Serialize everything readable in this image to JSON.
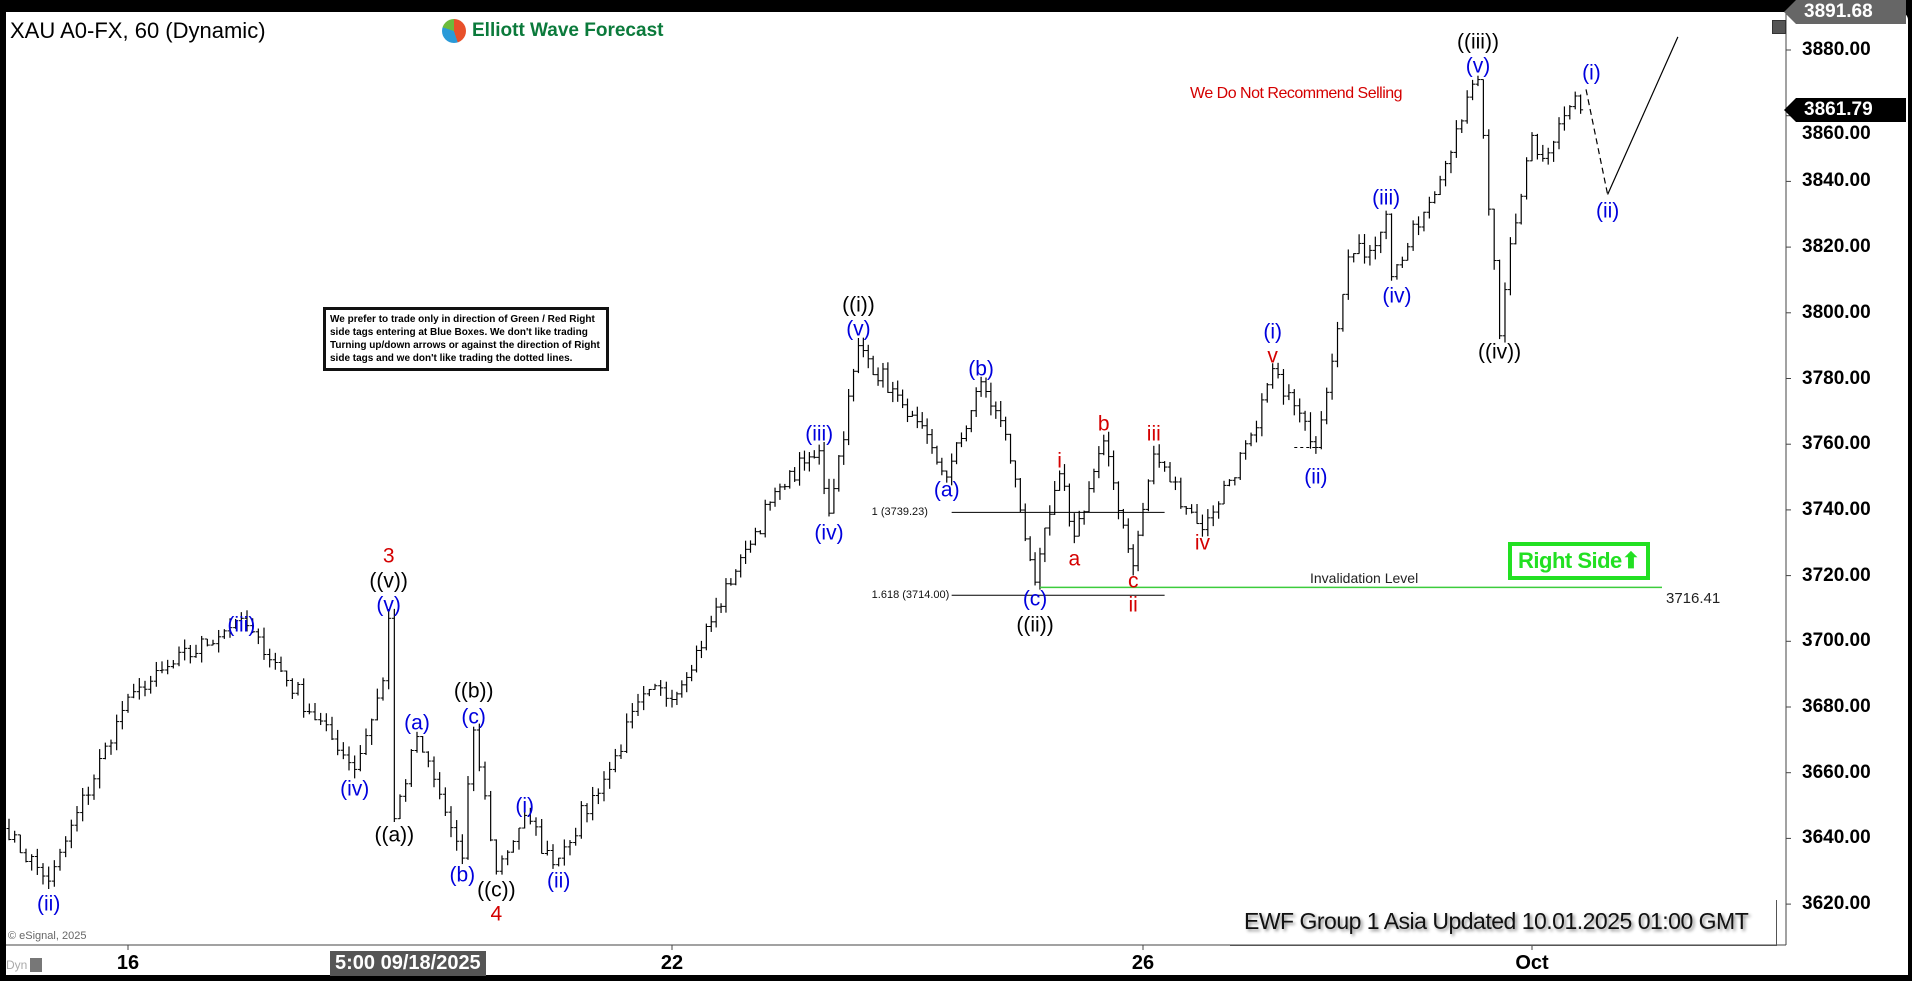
{
  "header": {
    "symbol_title": "XAU A0-FX, 60 (Dynamic)",
    "logo_text": "Elliott Wave Forecast"
  },
  "colors": {
    "wave_blue": "#0000dd",
    "wave_red": "#d40000",
    "wave_black": "#000000",
    "right_side_green": "#22e022",
    "invalidation_green": "#3ccc3c"
  },
  "notes": {
    "disclaimer": "We prefer to trade only in direction of Green / Red Right side tags entering at Blue Boxes. We don't like trading Turning up/down arrows or against the direction of Right side tags and we don't like trading the dotted lines.",
    "no_sell": "We Do Not Recommend Selling",
    "right_side": "Right Side",
    "right_side_icon": "arrow-up-icon"
  },
  "footer": {
    "updated": "EWF Group 1 Asia Updated 10.01.2025 01:00 GMT",
    "copyright": "© eSignal, 2025",
    "dyn": "Dyn"
  },
  "chart_data": {
    "type": "ohlc",
    "title": "XAU A0-FX, 60 (Dynamic)",
    "price_axis": {
      "range": [
        3611,
        3893
      ],
      "ticks": [
        "3620.00",
        "3640.00",
        "3660.00",
        "3680.00",
        "3700.00",
        "3720.00",
        "3740.00",
        "3760.00",
        "3780.00",
        "3800.00",
        "3820.00",
        "3840.00",
        "3860.00",
        "3880.00"
      ]
    },
    "time_axis": {
      "ticks": [
        {
          "label": "16",
          "date": "2025-09-16"
        },
        {
          "label": "22",
          "date": "2025-09-22"
        },
        {
          "label": "26",
          "date": "2025-09-26"
        },
        {
          "label": "Oct",
          "date": "2025-10-01"
        }
      ],
      "cursor_label": "5:00 09/18/2025"
    },
    "last_price": "3861.79",
    "high_marker": "3891.68",
    "grid": false,
    "price_path": [
      {
        "t": "2025-09-15 02:00",
        "p": 3643
      },
      {
        "t": "2025-09-15 10:00",
        "p": 3627
      },
      {
        "t": "2025-09-16 00:00",
        "p": 3683
      },
      {
        "t": "2025-09-16 20:00",
        "p": 3707
      },
      {
        "t": "2025-09-17 16:00",
        "p": 3661
      },
      {
        "t": "2025-09-17 21:00",
        "p": 3688
      },
      {
        "t": "2025-09-17 22:00",
        "p": 3707
      },
      {
        "t": "2025-09-17 23:00",
        "p": 3646
      },
      {
        "t": "2025-09-18 03:00",
        "p": 3671
      },
      {
        "t": "2025-09-18 11:00",
        "p": 3634
      },
      {
        "t": "2025-09-18 13:00",
        "p": 3673
      },
      {
        "t": "2025-09-18 17:00",
        "p": 3630
      },
      {
        "t": "2025-09-18 22:00",
        "p": 3647
      },
      {
        "t": "2025-09-19 03:00",
        "p": 3632
      },
      {
        "t": "2025-09-19 13:00",
        "p": 3661
      },
      {
        "t": "2025-09-19 19:00",
        "p": 3684
      },
      {
        "t": "2025-09-22 01:00",
        "p": 3684
      },
      {
        "t": "2025-09-22 15:00",
        "p": 3728
      },
      {
        "t": "2025-09-22 22:00",
        "p": 3747
      },
      {
        "t": "2025-09-23 06:00",
        "p": 3758
      },
      {
        "t": "2025-09-23 08:00",
        "p": 3739
      },
      {
        "t": "2025-09-23 14:00",
        "p": 3790
      },
      {
        "t": "2025-09-23 23:00",
        "p": 3772
      },
      {
        "t": "2025-09-24 08:00",
        "p": 3750
      },
      {
        "t": "2025-09-24 15:00",
        "p": 3779
      },
      {
        "t": "2025-09-24 20:00",
        "p": 3763
      },
      {
        "t": "2025-09-25 02:00",
        "p": 3718
      },
      {
        "t": "2025-09-25 07:00",
        "p": 3751
      },
      {
        "t": "2025-09-25 10:00",
        "p": 3732
      },
      {
        "t": "2025-09-25 16:00",
        "p": 3761
      },
      {
        "t": "2025-09-25 22:00",
        "p": 3723
      },
      {
        "t": "2025-09-26 02:00",
        "p": 3757
      },
      {
        "t": "2025-09-26 11:00",
        "p": 3734
      },
      {
        "t": "2025-09-26 21:00",
        "p": 3765
      },
      {
        "t": "2025-09-29 00:00",
        "p": 3783
      },
      {
        "t": "2025-09-29 08:00",
        "p": 3759
      },
      {
        "t": "2025-09-29 14:00",
        "p": 3817
      },
      {
        "t": "2025-09-29 18:00",
        "p": 3819
      },
      {
        "t": "2025-09-29 21:00",
        "p": 3830
      },
      {
        "t": "2025-09-29 22:00",
        "p": 3811
      },
      {
        "t": "2025-09-30 06:00",
        "p": 3836
      },
      {
        "t": "2025-09-30 10:00",
        "p": 3856
      },
      {
        "t": "2025-09-30 14:00",
        "p": 3871
      },
      {
        "t": "2025-09-30 15:00",
        "p": 3854
      },
      {
        "t": "2025-09-30 18:00",
        "p": 3793
      },
      {
        "t": "2025-09-30 20:00",
        "p": 3821
      },
      {
        "t": "2025-10-01 00:00",
        "p": 3854
      },
      {
        "t": "2025-10-01 02:00",
        "p": 3847
      },
      {
        "t": "2025-10-01 08:00",
        "p": 3866
      },
      {
        "t": "2025-10-01 09:00",
        "p": 3861.79
      }
    ],
    "projection": {
      "dashed": [
        {
          "t": "2025-10-01 10:00",
          "p": 3868
        },
        {
          "t": "2025-10-01 14:00",
          "p": 3836
        }
      ],
      "solid": [
        {
          "t": "2025-10-01 14:00",
          "p": 3836
        },
        {
          "t": "2025-10-02 03:00",
          "p": 3884
        }
      ]
    },
    "dotted_level": {
      "from": "2025-09-29 04:00",
      "to": "2025-09-29 08:00",
      "p": 3759
    },
    "fib_levels": [
      {
        "label": "1 (3739.23)",
        "p": 3739.23,
        "from": "2025-09-24 09:00",
        "to": "2025-09-26 04:00"
      },
      {
        "label": "1.618 (3714.00)",
        "p": 3714.0,
        "from": "2025-09-24 09:00",
        "to": "2025-09-26 04:00"
      }
    ],
    "invalidation": {
      "label": "Invalidation Level",
      "value": "3716.41",
      "p": 3716.41,
      "from": "2025-09-25 03:00"
    },
    "wave_labels": [
      {
        "text": "(ii)",
        "c": "blue",
        "t": "2025-09-15 10:00",
        "p": 3620
      },
      {
        "text": "(iii)",
        "c": "blue",
        "t": "2025-09-16 20:00",
        "p": 3705
      },
      {
        "text": "(iv)",
        "c": "blue",
        "t": "2025-09-17 16:00",
        "p": 3655
      },
      {
        "text": "3",
        "c": "red",
        "t": "2025-09-17 22:00",
        "p": 3726
      },
      {
        "text": "((v))",
        "c": "black",
        "t": "2025-09-17 22:00",
        "p": 3718
      },
      {
        "text": "(v)",
        "c": "blue",
        "t": "2025-09-17 22:00",
        "p": 3711
      },
      {
        "text": "((a))",
        "c": "black",
        "t": "2025-09-17 23:00",
        "p": 3641
      },
      {
        "text": "(a)",
        "c": "blue",
        "t": "2025-09-18 03:00",
        "p": 3675
      },
      {
        "text": "(b)",
        "c": "blue",
        "t": "2025-09-18 11:00",
        "p": 3629
      },
      {
        "text": "((b))",
        "c": "black",
        "t": "2025-09-18 13:00",
        "p": 3685
      },
      {
        "text": "(c)",
        "c": "blue",
        "t": "2025-09-18 13:00",
        "p": 3677
      },
      {
        "text": "((c))",
        "c": "black",
        "t": "2025-09-18 17:00",
        "p": 3624
      },
      {
        "text": "4",
        "c": "red",
        "t": "2025-09-18 17:00",
        "p": 3617
      },
      {
        "text": "(i)",
        "c": "blue",
        "t": "2025-09-18 22:00",
        "p": 3650
      },
      {
        "text": "(ii)",
        "c": "blue",
        "t": "2025-09-19 04:00",
        "p": 3627
      },
      {
        "text": "(iii)",
        "c": "blue",
        "t": "2025-09-23 06:00",
        "p": 3763
      },
      {
        "text": "(iv)",
        "c": "blue",
        "t": "2025-09-23 08:00",
        "p": 3733
      },
      {
        "text": "((i))",
        "c": "black",
        "t": "2025-09-23 14:00",
        "p": 3801
      },
      {
        "text": "(v)",
        "c": "blue",
        "t": "2025-09-23 14:00",
        "p": 3795
      },
      {
        "text": "(a)",
        "c": "blue",
        "t": "2025-09-24 08:00",
        "p": 3746
      },
      {
        "text": "(b)",
        "c": "blue",
        "t": "2025-09-24 15:00",
        "p": 3783
      },
      {
        "text": "(c)",
        "c": "blue",
        "t": "2025-09-25 02:00",
        "p": 3713
      },
      {
        "text": "((ii))",
        "c": "black",
        "t": "2025-09-25 02:00",
        "p": 3705
      },
      {
        "text": "i",
        "c": "red",
        "t": "2025-09-25 07:00",
        "p": 3755
      },
      {
        "text": "a",
        "c": "red",
        "t": "2025-09-25 10:00",
        "p": 3725
      },
      {
        "text": "b",
        "c": "red",
        "t": "2025-09-25 16:00",
        "p": 3766
      },
      {
        "text": "c",
        "c": "red",
        "t": "2025-09-25 22:00",
        "p": 3718
      },
      {
        "text": "ii",
        "c": "red",
        "t": "2025-09-25 22:00",
        "p": 3711
      },
      {
        "text": "iii",
        "c": "red",
        "t": "2025-09-26 02:00",
        "p": 3763
      },
      {
        "text": "iv",
        "c": "red",
        "t": "2025-09-26 11:00",
        "p": 3730
      },
      {
        "text": "(i)",
        "c": "blue",
        "t": "2025-09-29 00:00",
        "p": 3794
      },
      {
        "text": "v",
        "c": "red",
        "t": "2025-09-29 00:00",
        "p": 3787
      },
      {
        "text": "(ii)",
        "c": "blue",
        "t": "2025-09-29 08:00",
        "p": 3750
      },
      {
        "text": "(iii)",
        "c": "blue",
        "t": "2025-09-29 21:00",
        "p": 3835
      },
      {
        "text": "(iv)",
        "c": "blue",
        "t": "2025-09-29 23:00",
        "p": 3805
      },
      {
        "text": "((iii))",
        "c": "black",
        "t": "2025-09-30 14:00",
        "p": 3881.5
      },
      {
        "text": "(v)",
        "c": "blue",
        "t": "2025-09-30 14:00",
        "p": 3875
      },
      {
        "text": "((iv))",
        "c": "black",
        "t": "2025-09-30 18:00",
        "p": 3788
      },
      {
        "text": "(i)",
        "c": "blue",
        "t": "2025-10-01 11:00",
        "p": 3873
      },
      {
        "text": "(ii)",
        "c": "blue",
        "t": "2025-10-01 14:00",
        "p": 3831
      }
    ]
  }
}
